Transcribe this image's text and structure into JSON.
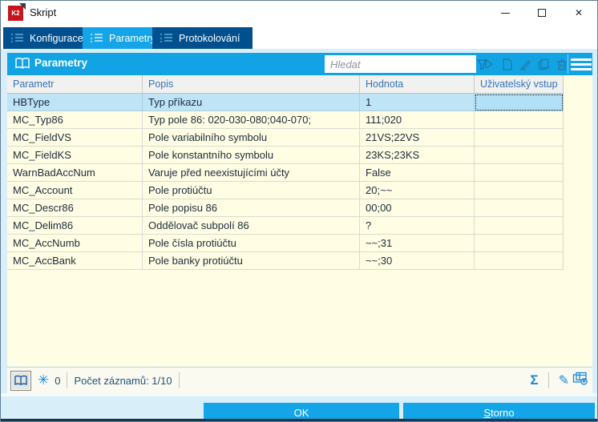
{
  "window": {
    "title": "Skript",
    "logo": "K2"
  },
  "window_controls": {
    "close_glyph": "✕"
  },
  "tabs": [
    {
      "label": "Konfigurace",
      "active": false
    },
    {
      "label": "Parametry",
      "active": true
    },
    {
      "label": "Protokolování",
      "active": false
    }
  ],
  "panel": {
    "title": "Parametry",
    "search": {
      "placeholder": "Hledat",
      "value": ""
    }
  },
  "table": {
    "columns": [
      "Parametr",
      "Popis",
      "Hodnota",
      "Uživatelský vstup"
    ],
    "selected_row_index": 0,
    "rows": [
      {
        "parametr": "HBType",
        "popis": "Typ příkazu",
        "hodnota": "1",
        "vstup": ""
      },
      {
        "parametr": "MC_Typ86",
        "popis": "Typ pole 86: 020-030-080;040-070;",
        "hodnota": "111;020",
        "vstup": ""
      },
      {
        "parametr": "MC_FieldVS",
        "popis": "Pole variabilního symbolu",
        "hodnota": "21VS;22VS",
        "vstup": ""
      },
      {
        "parametr": "MC_FieldKS",
        "popis": "Pole konstantního symbolu",
        "hodnota": "23KS;23KS",
        "vstup": ""
      },
      {
        "parametr": "WarnBadAccNum",
        "popis": "Varuje před neexistujícími účty",
        "hodnota": "False",
        "vstup": ""
      },
      {
        "parametr": "MC_Account",
        "popis": "Pole protiúčtu",
        "hodnota": "20;~~",
        "vstup": ""
      },
      {
        "parametr": "MC_Descr86",
        "popis": "Pole popisu 86",
        "hodnota": "00;00",
        "vstup": ""
      },
      {
        "parametr": "MC_Delim86",
        "popis": "Oddělovač subpolí 86",
        "hodnota": "?",
        "vstup": ""
      },
      {
        "parametr": "MC_AccNumb",
        "popis": "Pole čísla protiúčtu",
        "hodnota": "~~;31",
        "vstup": ""
      },
      {
        "parametr": "MC_AccBank",
        "popis": "Pole banky protiúčtu",
        "hodnota": "~~;30",
        "vstup": ""
      }
    ]
  },
  "statusbar": {
    "asterisk_glyph": "✳",
    "asterisk_count": "0",
    "records": "Počet záznamů: 1/10",
    "sigma_glyph": "Σ",
    "pencil_glyph": "✎"
  },
  "buttons": {
    "ok": "OK",
    "storno_accel": "S",
    "storno_rest": "torno"
  },
  "colors": {
    "accent_blue": "#14a5e8",
    "inactive_tab_blue": "#00508f",
    "row_yellow": "#fffde3",
    "selected_row_blue": "#bee4f6",
    "logo_red": "#c4161c"
  }
}
